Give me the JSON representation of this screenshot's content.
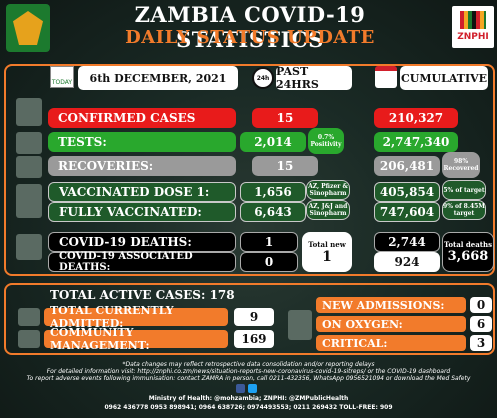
{
  "header": {
    "title": "ZAMBIA COVID-19 STATISTICS",
    "subtitle": "DAILY STATUS UPDATE",
    "logo_text": "ZNPHI"
  },
  "columns": {
    "date": "6th DECEMBER, 2021",
    "today_icon": "TODAY",
    "past24_icon": "24h",
    "past24": "PAST 24HRS",
    "cumulative": "CUMULATIVE"
  },
  "rows": {
    "confirmed": {
      "label": "CONFIRMED CASES",
      "past24": "15",
      "cumulative": "210,327"
    },
    "tests": {
      "label": "TESTS:",
      "past24": "2,014",
      "positivity": "0.7% Positivity",
      "cumulative": "2,747,340"
    },
    "recoveries": {
      "label": "RECOVERIES:",
      "past24": "15",
      "cumulative": "206,481",
      "recovered_note": "98% Recovered"
    },
    "vaccinated_dose1": {
      "label": "VACCINATED DOSE 1:",
      "past24": "1,656",
      "vaccine_note": "AZ, Pfizer & Sinopharm",
      "cumulative": "405,854",
      "target_note": "5% of target"
    },
    "fully_vaccinated": {
      "label": "FULLY VACCINATED:",
      "past24": "6,643",
      "vaccine_note": "AZ, J&J and Sinopharm",
      "cumulative": "747,604",
      "target_note": "9% of 8.45M target"
    },
    "deaths": {
      "label": "COVID-19 DEATHS:",
      "past24": "1",
      "cumulative": "2,744"
    },
    "assoc_deaths": {
      "label": "COVID-19 ASSOCIATED DEATHS:",
      "past24": "0",
      "cumulative": "924"
    },
    "total_new": {
      "label": "Total new",
      "value": "1"
    },
    "total_deaths": {
      "label": "Total deaths",
      "value": "3,668"
    }
  },
  "active": {
    "title": "TOTAL ACTIVE CASES: 178",
    "admitted_label": "TOTAL CURRENTLY ADMITTED:",
    "admitted": "9",
    "community_label": "COMMUNITY MANAGEMENT:",
    "community": "169",
    "new_adm_label": "NEW ADMISSIONS:",
    "new_adm": "0",
    "oxygen_label": "ON OXYGEN:",
    "oxygen": "6",
    "critical_label": "CRITICAL:",
    "critical": "3"
  },
  "footer": {
    "line1": "*Data changes may reflect retrospective data consolidation and/or reporting delays",
    "line2": "For detailed information visit: http://znphi.co.zm/news/situation-reports-new-coronavirus-covid-19-sitreps/ or the COVID-19 dashboard",
    "line3": "To report adverse events following immunisation: contact ZAMRA in person, call 0211-432356, WhatsApp 0956521094 or download the Med Safety",
    "line4": "Ministry of Health: @mohzambia; ZNPHI: @ZMPublicHealth",
    "line5": "0962 436778    0953 898941; 0964 638726; 0974493553; 0211 269432 TOLL-FREE: 909"
  },
  "colors": {
    "accent": "#f27b2b",
    "red": "#e81b1b",
    "green": "#29a82d",
    "dark_green": "#1f5a2a",
    "grey": "#9a9a9a"
  }
}
